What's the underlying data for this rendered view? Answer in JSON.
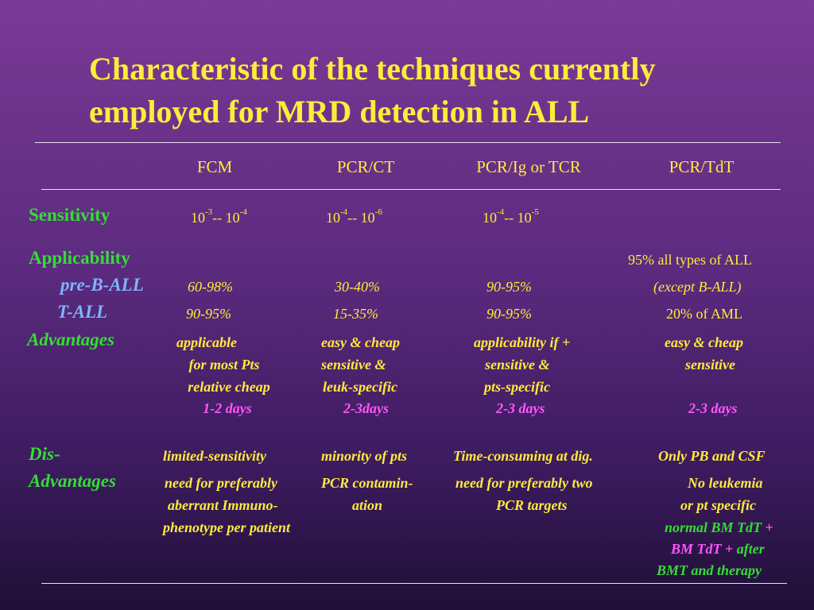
{
  "title": "Characteristic of the techniques currently employed for MRD detection in ALL",
  "headers": [
    "FCM",
    "PCR/CT",
    "PCR/Ig or TCR",
    "PCR/TdT"
  ],
  "rows": {
    "sensitivity": {
      "label": "Sensitivity",
      "fcm": {
        "a": "10",
        "ae": "-3",
        "sep": "-- 10",
        "be": "-4"
      },
      "pcrct": {
        "a": "10",
        "ae": "-4",
        "sep": "-- 10",
        "be": "-6"
      },
      "pcrig": {
        "a": "10",
        "ae": "-4",
        "sep": "-- 10",
        "be": "-5"
      }
    },
    "applicability": {
      "label": "Applicability",
      "tdt_note": "95% all types of ALL",
      "pre_b": {
        "label": "pre-B-ALL",
        "fcm": "60-98%",
        "pcrct": "30-40%",
        "pcrig": "90-95%",
        "tdt": "(except B-ALL)"
      },
      "t_all": {
        "label": "T-ALL",
        "fcm": "90-95%",
        "pcrct": "15-35%",
        "pcrig": "90-95%",
        "tdt": "20% of AML"
      }
    },
    "advantages": {
      "label": "Advantages",
      "fcm": [
        "applicable",
        "for most Pts",
        "relative cheap",
        "1-2 days"
      ],
      "pcrct": [
        "easy & cheap",
        "sensitive &",
        "leuk-specific",
        "2-3days"
      ],
      "pcrig": [
        "applicability if +",
        "sensitive &",
        "pts-specific",
        "2-3 days"
      ],
      "tdt": [
        "easy & cheap",
        "sensitive",
        "2-3 days"
      ]
    },
    "disadvantages": {
      "label1": "Dis-",
      "label2": "Advantages",
      "fcm": [
        "limited-sensitivity",
        "need for preferably",
        "aberrant Immuno-",
        "phenotype per patient"
      ],
      "pcrct": [
        "minority of pts",
        "PCR contamin-",
        "ation"
      ],
      "pcrig": [
        "Time-consuming at dig.",
        "need for preferably two",
        "PCR targets"
      ],
      "tdt": [
        "Only PB and CSF",
        "No leukemia",
        "or  pt specific",
        "normal BM TdT",
        "+",
        "BM TdT",
        "+",
        "after",
        "BMT and therapy"
      ]
    }
  },
  "colors": {
    "title": "#ffeb3b",
    "label": "#33dd33",
    "sublabel": "#7fb4ff",
    "days": "#ff55ff"
  }
}
